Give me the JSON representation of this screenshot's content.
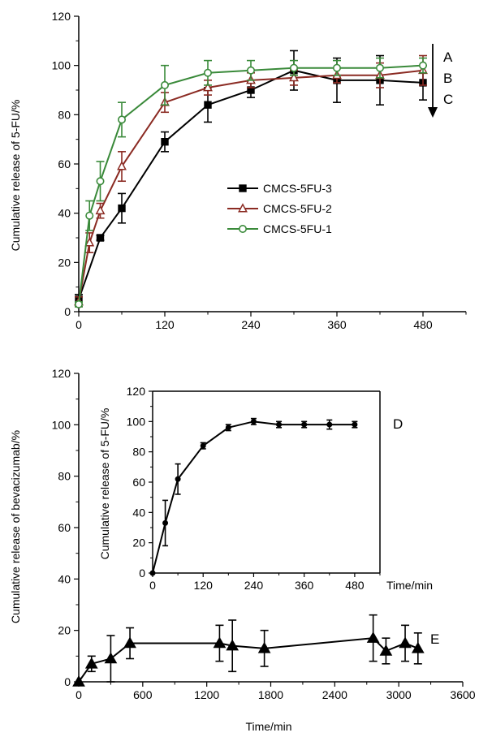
{
  "chart_data": [
    {
      "type": "line",
      "panel": "top",
      "xlabel": "",
      "ylabel": "Cumulative release of 5-FU/%",
      "xlim": [
        0,
        540
      ],
      "ylim": [
        0,
        120
      ],
      "xticks": [
        0,
        120,
        240,
        360,
        480
      ],
      "yticks": [
        0,
        20,
        40,
        60,
        80,
        100,
        120
      ],
      "legend_position": "center",
      "curve_labels": [
        "A",
        "B",
        "C"
      ],
      "series": [
        {
          "name": "CMCS-5FU-3",
          "color": "#000000",
          "marker": "square-filled",
          "x": [
            0,
            30,
            60,
            120,
            180,
            240,
            300,
            360,
            420,
            480
          ],
          "y": [
            5,
            30,
            42,
            69,
            84,
            90,
            98,
            94,
            94,
            93
          ],
          "err": [
            2,
            1,
            6,
            4,
            7,
            3,
            8,
            9,
            10,
            7
          ]
        },
        {
          "name": "CMCS-5FU-2",
          "color": "#8b2b23",
          "marker": "triangle-open",
          "x": [
            0,
            15,
            30,
            60,
            120,
            180,
            240,
            300,
            360,
            420,
            480
          ],
          "y": [
            4,
            28,
            41,
            59,
            85,
            91,
            94,
            95,
            96,
            96,
            98
          ],
          "err": [
            2,
            4,
            3,
            6,
            4,
            3,
            3,
            3,
            3,
            5,
            6
          ]
        },
        {
          "name": "CMCS-5FU-1",
          "color": "#3a8a3a",
          "marker": "circle-open",
          "x": [
            0,
            15,
            30,
            60,
            120,
            180,
            240,
            300,
            360,
            420,
            480
          ],
          "y": [
            3,
            39,
            53,
            78,
            92,
            97,
            98,
            99,
            99,
            99,
            100
          ],
          "err": [
            1,
            6,
            8,
            7,
            8,
            5,
            4,
            3,
            3,
            4,
            3
          ]
        }
      ]
    },
    {
      "type": "line",
      "panel": "bottom",
      "xlabel": "Time/min",
      "ylabel": "Cumulative release of bevacizumab/%",
      "xlim": [
        0,
        3600
      ],
      "ylim": [
        0,
        120
      ],
      "xticks": [
        0,
        600,
        1200,
        1800,
        2400,
        3000,
        3600
      ],
      "yticks": [
        0,
        20,
        40,
        60,
        80,
        100,
        120
      ],
      "curve_label": "E",
      "series": [
        {
          "name": "",
          "color": "#000000",
          "marker": "triangle-filled",
          "x": [
            0,
            120,
            300,
            480,
            1320,
            1440,
            1740,
            2760,
            2880,
            3060,
            3180
          ],
          "y": [
            0,
            7,
            9,
            15,
            15,
            14,
            13,
            17,
            12,
            15,
            13
          ],
          "err": [
            0,
            3,
            9,
            6,
            7,
            10,
            7,
            9,
            5,
            7,
            6
          ]
        }
      ]
    },
    {
      "type": "line",
      "panel": "inset",
      "xlabel": "Time/min",
      "ylabel": "Cumulative release of 5-FU/%",
      "xlim": [
        0,
        540
      ],
      "ylim": [
        0,
        120
      ],
      "xticks": [
        0,
        120,
        240,
        360,
        480
      ],
      "yticks": [
        0,
        20,
        40,
        60,
        80,
        100,
        120
      ],
      "curve_label": "D",
      "series": [
        {
          "name": "",
          "color": "#000000",
          "marker": "circle-filled",
          "x": [
            0,
            30,
            60,
            120,
            180,
            240,
            300,
            360,
            420,
            480
          ],
          "y": [
            0,
            33,
            62,
            84,
            96,
            100,
            98,
            98,
            98,
            98
          ],
          "err": [
            0,
            15,
            10,
            2,
            2,
            2,
            2,
            2,
            3,
            2
          ]
        }
      ]
    }
  ]
}
